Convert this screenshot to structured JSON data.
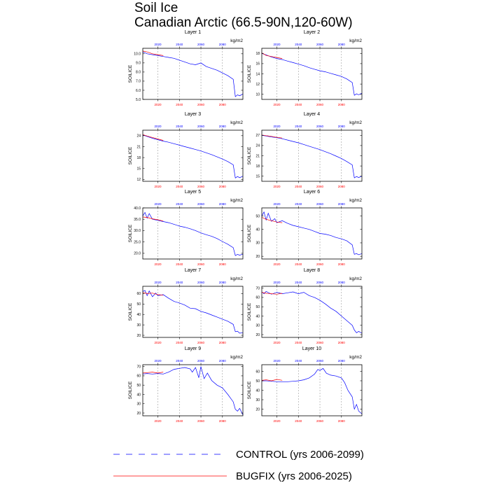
{
  "chart_data": {
    "type": "line",
    "title_line1": "Soil Ice",
    "title_line2": "Canadian Arctic (66.5-90N,120-60W)",
    "units": "kg/m2",
    "ylabel": "SOILICE",
    "x_range": [
      2006,
      2099
    ],
    "x_ticks_top": [
      "2020",
      "2040",
      "2060",
      "2080"
    ],
    "x_ticks_bottom": [
      "2020",
      "2040",
      "2060",
      "2080"
    ],
    "legend": [
      {
        "name": "CONTROL (yrs 2006-2099)",
        "color": "#0000ff",
        "style": "dashed"
      },
      {
        "name": "BUGFIX (yrs 2006-2025)",
        "color": "#ff0000",
        "style": "solid"
      }
    ],
    "panels": [
      {
        "title": "Layer 1",
        "ylim": [
          5.0,
          10.6
        ],
        "yticks": [
          "5.0",
          "6.0",
          "7.0",
          "8.0",
          "9.0",
          "10.0"
        ],
        "control_x": [
          2006,
          2010,
          2015,
          2020,
          2025,
          2030,
          2035,
          2040,
          2045,
          2050,
          2055,
          2060,
          2065,
          2070,
          2075,
          2080,
          2085,
          2090,
          2092,
          2094,
          2096,
          2099
        ],
        "control_y": [
          10.2,
          10.0,
          9.9,
          9.8,
          9.7,
          9.6,
          9.5,
          9.3,
          9.1,
          8.9,
          8.8,
          9.0,
          8.6,
          8.4,
          8.2,
          7.9,
          7.6,
          7.2,
          5.3,
          5.5,
          5.4,
          5.6
        ],
        "bugfix_x": [
          2006,
          2010,
          2015,
          2020,
          2025
        ],
        "bugfix_y": [
          10.3,
          10.2,
          10.0,
          9.9,
          9.8
        ]
      },
      {
        "title": "Layer 2",
        "ylim": [
          9,
          19
        ],
        "yticks": [
          "10",
          "12",
          "14",
          "16",
          "18"
        ],
        "control_x": [
          2006,
          2010,
          2015,
          2020,
          2025,
          2030,
          2035,
          2040,
          2045,
          2050,
          2055,
          2060,
          2065,
          2070,
          2075,
          2080,
          2085,
          2090,
          2092,
          2094,
          2096,
          2099
        ],
        "control_y": [
          18.0,
          17.7,
          17.3,
          17.0,
          16.8,
          16.5,
          16.2,
          15.9,
          15.6,
          15.2,
          14.9,
          14.6,
          14.4,
          14.1,
          13.8,
          13.5,
          13.0,
          12.3,
          9.8,
          10.1,
          9.9,
          10.2
        ],
        "bugfix_x": [
          2006,
          2010,
          2015,
          2020,
          2025
        ],
        "bugfix_y": [
          18.1,
          17.6,
          17.4,
          17.2,
          17.0
        ]
      },
      {
        "title": "Layer 3",
        "ylim": [
          11.5,
          25.5
        ],
        "yticks": [
          "12",
          "15",
          "18",
          "21",
          "24"
        ],
        "control_x": [
          2006,
          2010,
          2015,
          2020,
          2025,
          2030,
          2035,
          2040,
          2045,
          2050,
          2055,
          2060,
          2065,
          2070,
          2075,
          2080,
          2085,
          2090,
          2092,
          2094,
          2096,
          2099
        ],
        "control_y": [
          24.2,
          23.8,
          23.3,
          22.9,
          22.5,
          22.2,
          21.8,
          21.4,
          21.0,
          20.6,
          20.2,
          19.8,
          19.3,
          18.8,
          18.2,
          17.6,
          16.9,
          16.0,
          12.4,
          12.8,
          12.5,
          12.9
        ],
        "bugfix_x": [
          2006,
          2010,
          2015,
          2020,
          2025
        ],
        "bugfix_y": [
          24.3,
          23.9,
          23.5,
          23.1,
          22.7
        ]
      },
      {
        "title": "Layer 4",
        "ylim": [
          13.5,
          28.5
        ],
        "yticks": [
          "15",
          "18",
          "21",
          "24",
          "27"
        ],
        "control_x": [
          2006,
          2010,
          2015,
          2020,
          2025,
          2030,
          2035,
          2040,
          2045,
          2050,
          2055,
          2060,
          2065,
          2070,
          2075,
          2080,
          2085,
          2090,
          2092,
          2094,
          2096,
          2099
        ],
        "control_y": [
          27.0,
          26.8,
          26.5,
          26.3,
          26.0,
          25.6,
          25.2,
          24.8,
          24.3,
          23.8,
          23.3,
          22.8,
          22.2,
          21.6,
          20.9,
          20.2,
          19.3,
          18.3,
          14.5,
          14.9,
          14.6,
          15.0
        ],
        "bugfix_x": [
          2006,
          2010,
          2015,
          2020,
          2025
        ],
        "bugfix_y": [
          27.1,
          26.9,
          26.7,
          26.4,
          26.2
        ]
      },
      {
        "title": "Layer 5",
        "ylim": [
          17.5,
          40.0
        ],
        "yticks": [
          "20.0",
          "25.0",
          "30.0",
          "35.0",
          "40.0"
        ],
        "control_x": [
          2006,
          2008,
          2010,
          2012,
          2015,
          2020,
          2025,
          2030,
          2035,
          2040,
          2045,
          2050,
          2055,
          2060,
          2065,
          2070,
          2075,
          2080,
          2085,
          2090,
          2092,
          2094,
          2096,
          2099
        ],
        "control_y": [
          36.5,
          38.0,
          35.5,
          37.5,
          35.0,
          34.5,
          34.0,
          33.5,
          32.8,
          32.0,
          31.5,
          30.8,
          30.0,
          29.0,
          28.2,
          27.5,
          26.5,
          25.2,
          24.0,
          22.5,
          19.0,
          19.5,
          19.2,
          19.6
        ],
        "bugfix_x": [
          2006,
          2010,
          2015,
          2020,
          2025
        ],
        "bugfix_y": [
          36.0,
          35.8,
          35.2,
          34.8,
          34.2
        ]
      },
      {
        "title": "Layer 6",
        "ylim": [
          18,
          56
        ],
        "yticks": [
          "20",
          "30",
          "40",
          "50"
        ],
        "control_x": [
          2006,
          2008,
          2010,
          2012,
          2015,
          2018,
          2020,
          2025,
          2030,
          2035,
          2040,
          2045,
          2050,
          2055,
          2060,
          2065,
          2070,
          2075,
          2080,
          2085,
          2090,
          2092,
          2094,
          2096,
          2099
        ],
        "control_y": [
          50.0,
          53.0,
          47.0,
          52.0,
          46.0,
          48.0,
          45.0,
          46.5,
          44.5,
          43.0,
          42.0,
          41.0,
          40.0,
          38.5,
          37.0,
          36.5,
          35.5,
          34.0,
          33.0,
          31.5,
          28.5,
          21.5,
          22.0,
          21.2,
          22.0
        ],
        "bugfix_x": [
          2006,
          2010,
          2015,
          2020,
          2025
        ],
        "bugfix_y": [
          49.0,
          47.5,
          46.5,
          45.5,
          45.0
        ]
      },
      {
        "title": "Layer 7",
        "ylim": [
          18,
          67
        ],
        "yticks": [
          "20",
          "30",
          "40",
          "50",
          "60"
        ],
        "control_x": [
          2006,
          2008,
          2010,
          2012,
          2015,
          2018,
          2020,
          2025,
          2030,
          2035,
          2040,
          2045,
          2050,
          2055,
          2060,
          2065,
          2070,
          2075,
          2080,
          2085,
          2090,
          2092,
          2094,
          2096,
          2099
        ],
        "control_y": [
          62.0,
          63.0,
          58.0,
          62.5,
          57.0,
          60.5,
          58.0,
          59.0,
          55.5,
          52.5,
          51.0,
          49.0,
          46.0,
          45.5,
          43.0,
          41.5,
          39.5,
          37.5,
          35.5,
          33.5,
          30.5,
          23.5,
          24.0,
          22.0,
          22.5
        ],
        "bugfix_x": [
          2006,
          2010,
          2015,
          2020,
          2025
        ],
        "bugfix_y": [
          61.0,
          60.0,
          60.5,
          59.0,
          58.5
        ]
      },
      {
        "title": "Layer 8",
        "ylim": [
          17,
          72
        ],
        "yticks": [
          "20",
          "30",
          "40",
          "50",
          "60",
          "70"
        ],
        "control_x": [
          2006,
          2008,
          2010,
          2015,
          2020,
          2025,
          2030,
          2035,
          2040,
          2045,
          2050,
          2055,
          2060,
          2065,
          2070,
          2075,
          2080,
          2085,
          2090,
          2092,
          2094,
          2096,
          2099
        ],
        "control_y": [
          66.0,
          64.0,
          66.5,
          63.5,
          65.5,
          64.0,
          65.0,
          66.0,
          64.0,
          65.5,
          62.0,
          60.0,
          57.0,
          53.0,
          48.5,
          45.0,
          40.0,
          35.0,
          30.0,
          25.0,
          22.0,
          23.5,
          21.5
        ],
        "bugfix_x": [
          2006,
          2010,
          2015,
          2020,
          2025
        ],
        "bugfix_y": [
          65.5,
          64.5,
          64.0,
          63.5,
          64.5
        ]
      },
      {
        "title": "Layer 9",
        "ylim": [
          17,
          72
        ],
        "yticks": [
          "20",
          "30",
          "40",
          "50",
          "60",
          "70"
        ],
        "control_x": [
          2006,
          2010,
          2015,
          2020,
          2025,
          2030,
          2035,
          2040,
          2045,
          2050,
          2052,
          2055,
          2058,
          2060,
          2063,
          2066,
          2070,
          2075,
          2080,
          2085,
          2090,
          2092,
          2094,
          2096,
          2099
        ],
        "control_y": [
          62.0,
          62.5,
          62.0,
          62.5,
          62.0,
          64.0,
          67.0,
          68.0,
          69.0,
          67.5,
          64.0,
          69.0,
          58.0,
          70.0,
          57.0,
          63.0,
          55.0,
          50.0,
          47.0,
          40.0,
          32.0,
          24.0,
          22.0,
          25.0,
          18.0
        ],
        "bugfix_x": [
          2006,
          2010,
          2015,
          2020,
          2025
        ],
        "bugfix_y": [
          63.0,
          63.5,
          64.0,
          63.0,
          64.0
        ]
      },
      {
        "title": "Layer 10",
        "ylim": [
          13,
          67
        ],
        "yticks": [
          "20",
          "30",
          "40",
          "50",
          "60"
        ],
        "control_x": [
          2006,
          2010,
          2015,
          2020,
          2025,
          2030,
          2035,
          2040,
          2045,
          2050,
          2055,
          2058,
          2060,
          2063,
          2066,
          2070,
          2075,
          2080,
          2083,
          2086,
          2090,
          2092,
          2094,
          2096,
          2099
        ],
        "control_y": [
          50.0,
          50.0,
          49.5,
          49.0,
          49.0,
          49.0,
          49.5,
          50.0,
          51.0,
          53.0,
          57.0,
          62.0,
          61.0,
          63.0,
          58.0,
          56.0,
          55.0,
          53.0,
          48.0,
          40.0,
          33.0,
          20.0,
          25.0,
          18.0,
          15.0
        ],
        "bugfix_x": [
          2006,
          2010,
          2015,
          2020,
          2025
        ],
        "bugfix_y": [
          50.5,
          51.0,
          50.0,
          51.5,
          50.5
        ]
      }
    ]
  }
}
